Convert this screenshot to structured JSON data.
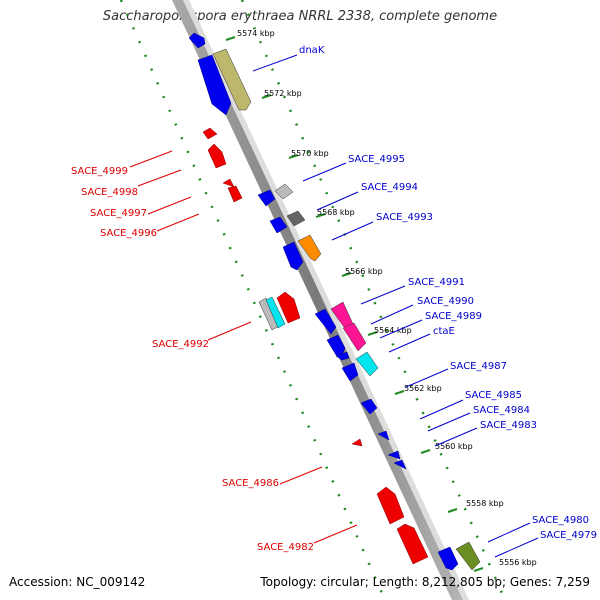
{
  "header": {
    "title": "Saccharopolyspora erythraea NRRL 2338, complete genome"
  },
  "footer": {
    "accession": "Accession: NC_009142",
    "summary": "Topology: circular; Length: 8,212,805 bp; Genes: 7,259"
  },
  "ticks": [
    {
      "label": "5574 kbp",
      "value": 5574
    },
    {
      "label": "5572 kbp",
      "value": 5572
    },
    {
      "label": "5570 kbp",
      "value": 5570
    },
    {
      "label": "5568 kbp",
      "value": 5568
    },
    {
      "label": "5566 kbp",
      "value": 5566
    },
    {
      "label": "5564 kbp",
      "value": 5564
    },
    {
      "label": "5562 kbp",
      "value": 5562
    },
    {
      "label": "5560 kbp",
      "value": 5560
    },
    {
      "label": "5558 kbp",
      "value": 5558
    },
    {
      "label": "5556 kbp",
      "value": 5556
    }
  ],
  "reverse_labels": [
    "SACE_4999",
    "SACE_4998",
    "SACE_4997",
    "SACE_4996",
    "SACE_4992",
    "SACE_4986",
    "SACE_4982"
  ],
  "forward_labels": [
    "dnaK",
    "SACE_4995",
    "SACE_4994",
    "SACE_4993",
    "SACE_4991",
    "SACE_4990",
    "SACE_4989",
    "ctaE",
    "SACE_4987",
    "SACE_4985",
    "SACE_4984",
    "SACE_4983",
    "SACE_4980",
    "SACE_4979"
  ],
  "colors": {
    "forward_label": "#0000cc",
    "reverse_label": "#dd0000",
    "forward_gene": "#0000ee",
    "reverse_gene": "#ee0000",
    "backbone": "#888888",
    "dotted_track": "#228b22",
    "khaki": "#bdb76b",
    "grey_light": "#bbbbbb",
    "grey_dark": "#666666",
    "orange": "#ff8c00",
    "magenta": "#ff1493",
    "cyan": "#00e5ee",
    "olive": "#6b8e23"
  }
}
